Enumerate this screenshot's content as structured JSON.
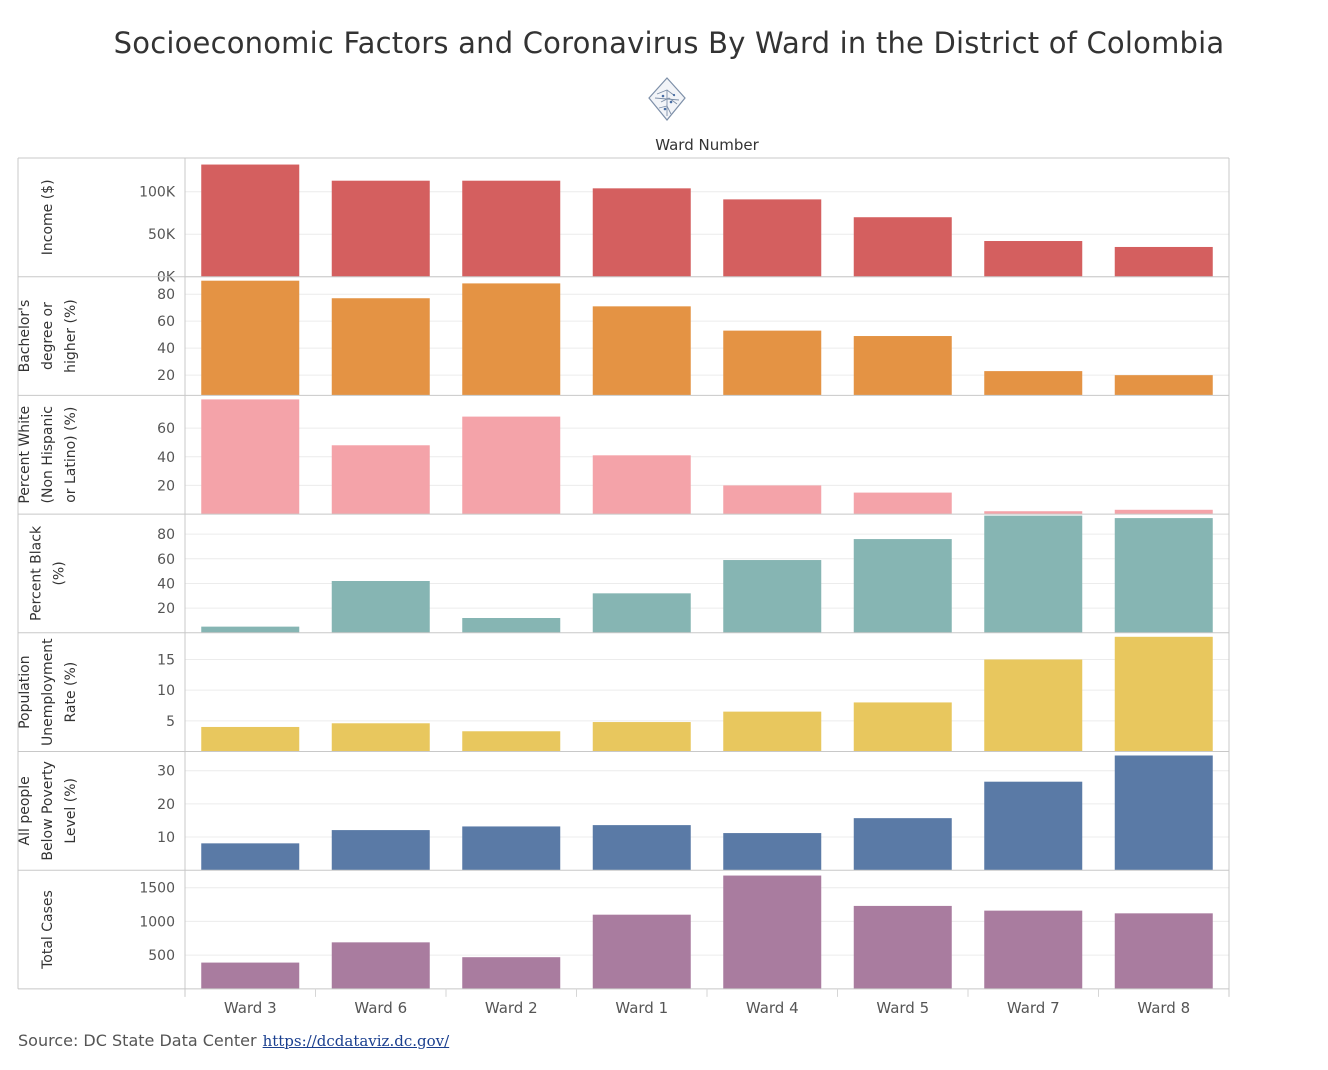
{
  "title": "Socioeconomic Factors and Coronavirus By Ward in the District of Colombia",
  "column_header": "Ward Number",
  "icon": "dc-ward-map-icon",
  "source_label": "Source: DC State Data Center",
  "source_link": "https://dcdataviz.dc.gov/",
  "chart_data": {
    "type": "bar",
    "categories": [
      "Ward 3",
      "Ward 6",
      "Ward 2",
      "Ward 1",
      "Ward 4",
      "Ward 5",
      "Ward 7",
      "Ward 8"
    ],
    "panels": [
      {
        "name": "Income ($)",
        "label_lines": [
          "Income ($)"
        ],
        "color": "#d45f5f",
        "ylim": [
          0,
          135000
        ],
        "ticks": [
          0,
          50000,
          100000
        ],
        "tick_labels": [
          "0K",
          "50K",
          "100K"
        ],
        "values": [
          132000,
          113000,
          113000,
          104000,
          91000,
          70000,
          42000,
          35000
        ]
      },
      {
        "name": "Bachelor's degree or higher (%)",
        "label_lines": [
          "Bachelor's",
          "degree or",
          "higher (%)"
        ],
        "color": "#e49344",
        "ylim": [
          5,
          90
        ],
        "ticks": [
          20,
          40,
          60,
          80
        ],
        "tick_labels": [
          "20",
          "40",
          "60",
          "80"
        ],
        "values": [
          90,
          77,
          88,
          71,
          53,
          49,
          23,
          20
        ]
      },
      {
        "name": "Percent White (Non Hispanic or Latino) (%)",
        "label_lines": [
          "Percent White",
          "(Non Hispanic",
          "or Latino) (%)"
        ],
        "color": "#f4a3a9",
        "ylim": [
          0,
          80
        ],
        "ticks": [
          20,
          40,
          60
        ],
        "tick_labels": [
          "20",
          "40",
          "60"
        ],
        "values": [
          80,
          48,
          68,
          41,
          20,
          15,
          2,
          3
        ]
      },
      {
        "name": "Percent Black (%)",
        "label_lines": [
          "Percent Black",
          "(%)"
        ],
        "color": "#86b5b3",
        "ylim": [
          0,
          93
        ],
        "ticks": [
          20,
          40,
          60,
          80
        ],
        "tick_labels": [
          "20",
          "40",
          "60",
          "80"
        ],
        "values": [
          5,
          42,
          12,
          32,
          59,
          76,
          95,
          93
        ]
      },
      {
        "name": "Population Unemployment Rate (%)",
        "label_lines": [
          "Population",
          "Unemployment",
          "Rate (%)"
        ],
        "color": "#e8c75e",
        "ylim": [
          0,
          18.7
        ],
        "ticks": [
          5,
          10,
          15
        ],
        "tick_labels": [
          "5",
          "10",
          "15"
        ],
        "values": [
          4,
          4.6,
          3.3,
          4.8,
          6.5,
          8,
          15,
          18.7
        ]
      },
      {
        "name": "All people Below Poverty Level (%)",
        "label_lines": [
          "All people",
          "Below Poverty",
          "Level (%)"
        ],
        "color": "#5a7aa6",
        "ylim": [
          0,
          34.6
        ],
        "ticks": [
          10,
          20,
          30
        ],
        "tick_labels": [
          "10",
          "20",
          "30"
        ],
        "values": [
          8.1,
          12.1,
          13.2,
          13.6,
          11.2,
          15.7,
          26.7,
          34.6
        ]
      },
      {
        "name": "Total Cases",
        "label_lines": [
          "Total Cases"
        ],
        "color": "#a97c9f",
        "ylim": [
          0,
          1700
        ],
        "ticks": [
          500,
          1000,
          1500
        ],
        "tick_labels": [
          "500",
          "1000",
          "1500"
        ],
        "values": [
          390,
          690,
          470,
          1100,
          1680,
          1230,
          1160,
          1120
        ]
      }
    ],
    "grid": true,
    "legend": "none"
  }
}
